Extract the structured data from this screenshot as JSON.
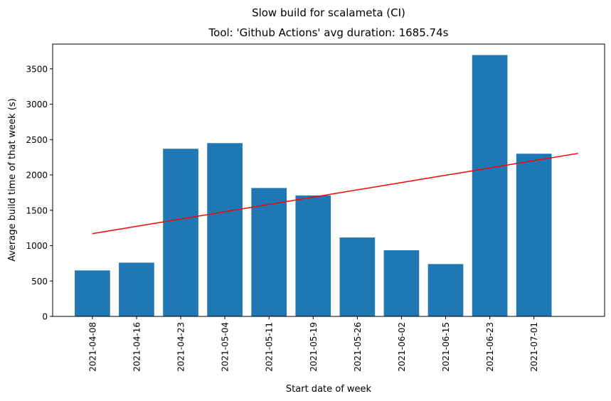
{
  "chart_data": {
    "type": "bar",
    "title": "Slow build for scalameta (CI)",
    "subtitle": "Tool: 'Github Actions' avg duration: 1685.74s",
    "xlabel": "Start date of week",
    "ylabel": "Average build time of that week (s)",
    "categories": [
      "2021-04-08",
      "2021-04-16",
      "2021-04-23",
      "2021-05-04",
      "2021-05-11",
      "2021-05-19",
      "2021-05-26",
      "2021-06-02",
      "2021-06-15",
      "2021-06-23",
      "2021-07-01"
    ],
    "values": [
      650,
      760,
      2370,
      2450,
      1815,
      1710,
      1115,
      935,
      740,
      3695,
      2300
    ],
    "ylim": [
      0,
      3850
    ],
    "yticks": [
      0,
      500,
      1000,
      1500,
      2000,
      2500,
      3000,
      3500
    ],
    "trendline": {
      "x_start": 0,
      "y_start": 1170,
      "x_end": 11,
      "y_end": 2305
    },
    "colors": {
      "bars": "#1f77b4",
      "trendline": "#ff0000"
    },
    "grid": false,
    "legend": "none"
  }
}
